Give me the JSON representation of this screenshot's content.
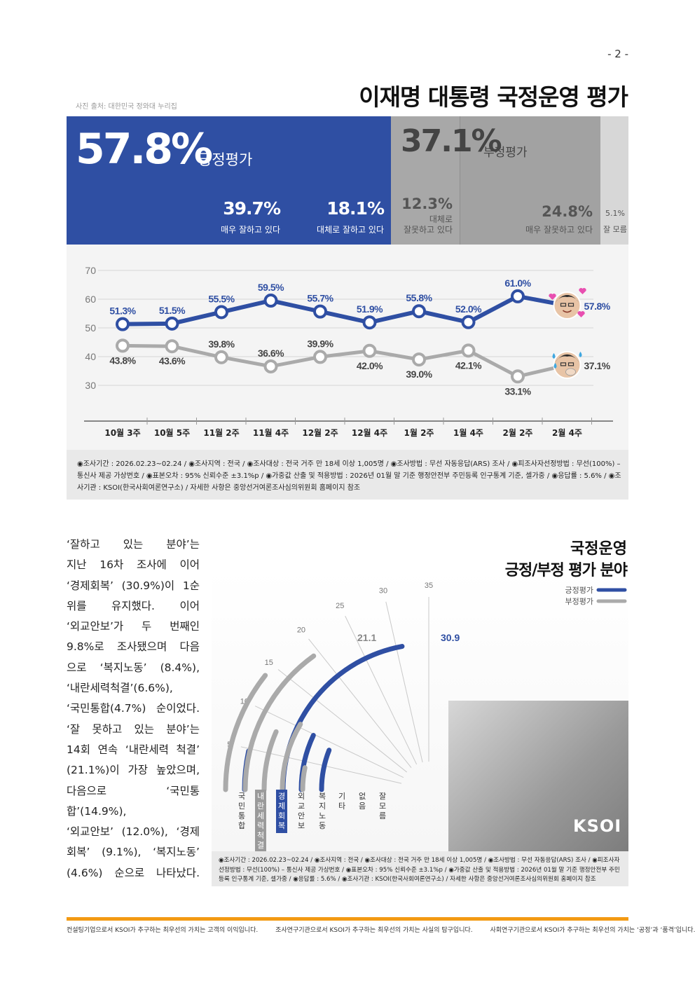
{
  "page_number": "- 2 -",
  "photo_credit": "사진 출처: 대한민국 정와대 누리집",
  "title": "이재명 대통령 국정운영 평가",
  "summary": {
    "positive": {
      "value": "57.8%",
      "label": "긍정평가"
    },
    "negative": {
      "value": "37.1%",
      "label": "부정평가"
    },
    "very_good": {
      "value": "39.7%",
      "label": "매우 잘하고 있다"
    },
    "somewhat_good": {
      "value": "18.1%",
      "label": "대체로 잘하고 있다"
    },
    "somewhat_bad": {
      "value": "12.3%",
      "label1": "대체로",
      "label2": "잘못하고 있다"
    },
    "very_bad": {
      "value": "24.8%",
      "label": "매우 잘못하고 있다"
    },
    "unknown": {
      "value": "5.1%",
      "label": "잘 모름"
    }
  },
  "chart_data": [
    {
      "type": "line",
      "categories": [
        "10월 3주",
        "10월 5주",
        "11월 2주",
        "11월 4주",
        "12월 2주",
        "12월 4주",
        "1월 2주",
        "1월 4주",
        "2월 2주",
        "2월 4주"
      ],
      "ylim": [
        30,
        70
      ],
      "yticks": [
        "30",
        "40",
        "50",
        "60",
        "70"
      ],
      "grid": true,
      "series": [
        {
          "values": [
            51.3,
            51.5,
            55.5,
            59.5,
            55.7,
            51.9,
            55.8,
            52.0,
            61.0,
            57.8
          ],
          "labels": [
            "51.3%",
            "51.5%",
            "55.5%",
            "59.5%",
            "55.7%",
            "51.9%",
            "55.8%",
            "52.0%",
            "61.0%",
            "57.8%"
          ],
          "color": "#2f4fa3"
        },
        {
          "values": [
            43.8,
            43.6,
            39.8,
            36.6,
            39.9,
            42.0,
            39.0,
            42.1,
            33.1,
            37.1
          ],
          "labels": [
            "43.8%",
            "43.6%",
            "39.8%",
            "36.6%",
            "39.9%",
            "42.0%",
            "39.0%",
            "42.1%",
            "33.1%",
            "37.1%"
          ],
          "color": "#aaaaaa"
        }
      ]
    },
    {
      "type": "bar",
      "title_line1": "국정운영",
      "title_line2": "긍정/부정 평가 분야",
      "categories": [
        "국민통합",
        "내란세력척결",
        "경제회복",
        "외교안보",
        "복지노동",
        "기타",
        "없음",
        "잘 모름"
      ],
      "scale_ticks": [
        "5",
        "10",
        "15",
        "20",
        "25",
        "30",
        "35"
      ],
      "series": [
        {
          "name": "긍정평가",
          "color": "#2f4fa3",
          "values": [
            4.7,
            null,
            30.9,
            9.8,
            8.4,
            null,
            null,
            null
          ]
        },
        {
          "name": "부정평가",
          "color": "#aaaaaa",
          "values": [
            14.9,
            21.1,
            9.1,
            12.0,
            4.6,
            null,
            null,
            null
          ]
        }
      ],
      "labeled_values": {
        "positive_top": "30.9",
        "negative_top": "21.1"
      }
    }
  ],
  "survey_note": "◉조사기간 : 2026.02.23~02.24 / ◉조사지역 : 전국 / ◉조사대상 : 전국 거주 만 18세 이상 1,005명 / ◉조사방법 : 무선 자동응답(ARS) 조사 / ◉피조사자선정방법 : 무선(100%) – 통신사 제공 가상번호 / ◉표본오차 : 95% 신뢰수준 ±3.1%p / ◉가중값 산출 및 적용방법 : 2026년 01월 말 기준 행정안전부 주민등록 인구통계 기준, 셀가중 / ◉응답률 : 5.6% / ◉조사기관 : KSOI(한국사회여론연구소) / 자세한 사항은 중앙선거여론조사심의위원회 홈페이지 참조",
  "body_lines": [
    "‘잘하고 있는 분야’는",
    "지난 16차 조사에 이어",
    "‘경제회복’ (30.9%)이 1순",
    "위를 유지했다. 이어",
    "‘외교안보’가 두 번째인",
    "9.8%로 조사됐으며 다음",
    "으로 ‘복지노동’ (8.4%),",
    "‘내란세력척결’(6.6%),",
    "‘국민통합(4.7%) 순이었다.",
    "‘잘 못하고 있는 분야’는",
    "14회 연속 ‘내란세력 척결’",
    "(21.1%)이 가장 높았으며,",
    "다음으로 ‘국민통합’(14.9%),",
    "‘외교안보’ (12.0%), ‘경제",
    "회복’ (9.1%), ‘복지노동’",
    "(4.6%) 순으로 나타났다."
  ],
  "ksoi_logo": "KSOI",
  "footer": [
    "컨설팅기업으로서 KSOI가 추구하는 최우선의 가치는 고객의 이익입니다.",
    "조사연구기관으로서 KSOI가 추구하는 최우선의 가치는 사실의 탐구입니다.",
    "사회연구기관으로서 KSOI가 추구하는 최우선의 가치는 ‘공정’과 ‘품격’입니다."
  ]
}
